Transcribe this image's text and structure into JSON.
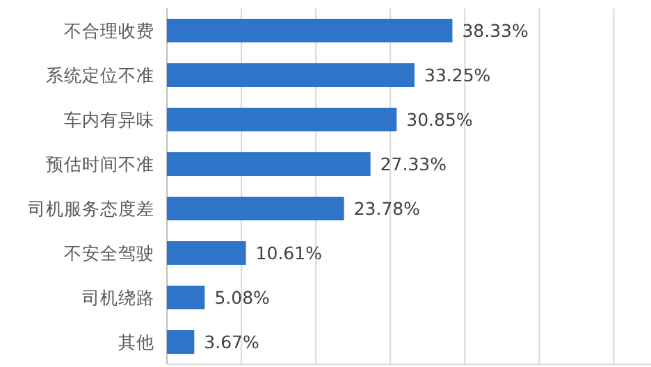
{
  "chart_data": {
    "type": "bar",
    "orientation": "horizontal",
    "categories": [
      "不合理收费",
      "系统定位不准",
      "车内有异味",
      "预估时间不准",
      "司机服务态度差",
      "不安全驾驶",
      "司机绕路",
      "其他"
    ],
    "values": [
      38.33,
      33.25,
      30.85,
      27.33,
      23.78,
      10.61,
      5.08,
      3.67
    ],
    "value_labels": [
      "38.33%",
      "33.25%",
      "30.85%",
      "27.33%",
      "23.78%",
      "10.61%",
      "5.08%",
      "3.67%"
    ],
    "color": "#2e75c9",
    "xlim": [
      0,
      65
    ],
    "xticks": [
      {
        "value": 10,
        "label": null
      },
      {
        "value": 20,
        "label": null
      },
      {
        "value": 30,
        "label": null
      },
      {
        "value": 40,
        "label": null
      },
      {
        "value": 50,
        "label": null
      },
      {
        "value": 60,
        "label": null
      }
    ],
    "grid": "x"
  }
}
